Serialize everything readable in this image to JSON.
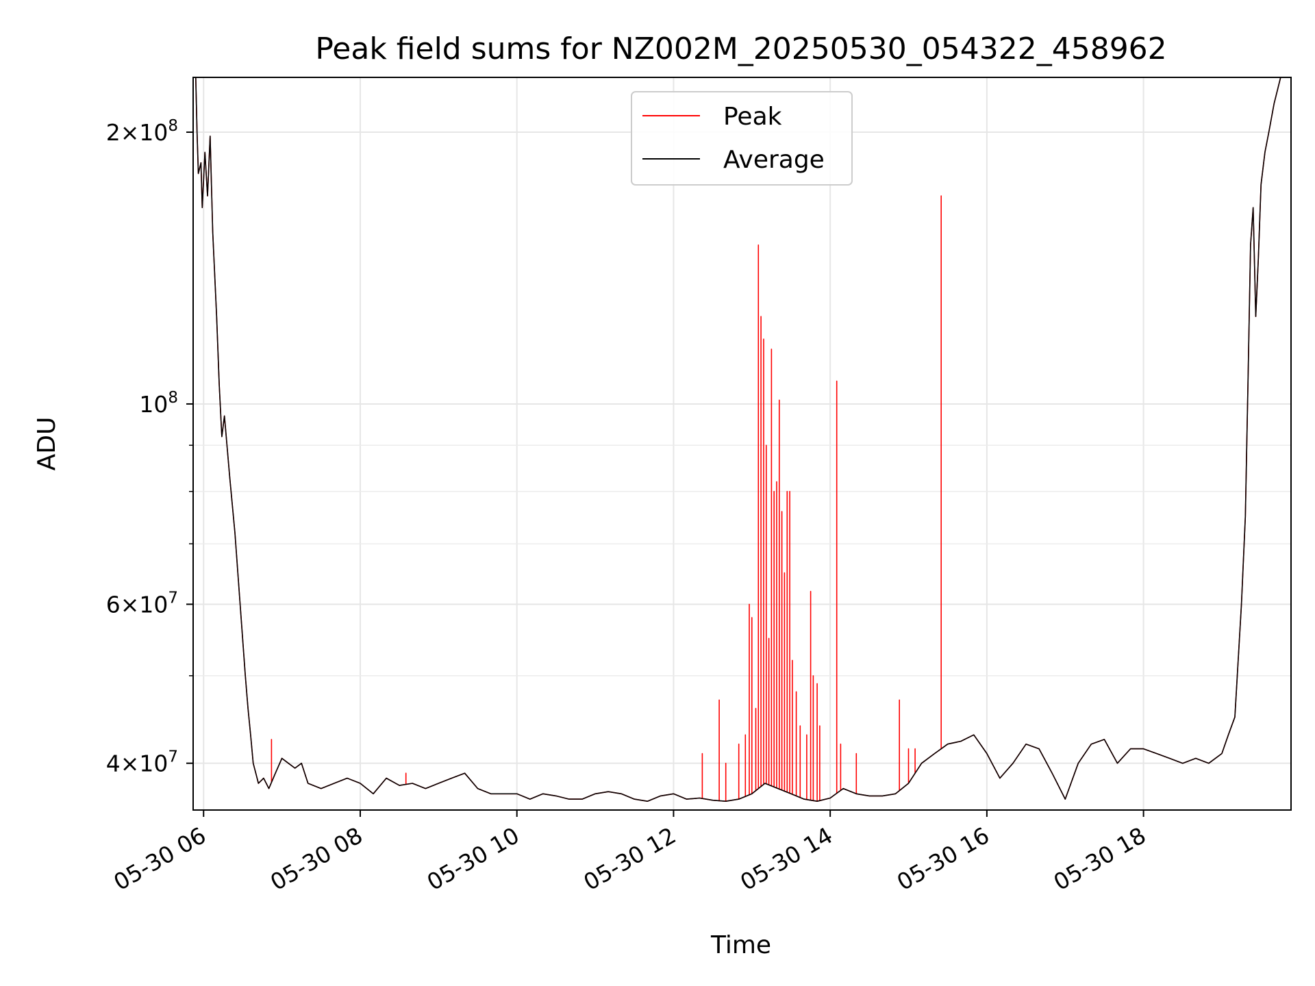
{
  "chart_data": {
    "type": "line",
    "title": "Peak field sums for NZ002M_20250530_054322_458962",
    "xlabel": "Time",
    "ylabel": "ADU",
    "xlim": [
      "2025-05-30T05:52",
      "2025-05-30T19:53"
    ],
    "ylim": [
      35500000,
      230000000
    ],
    "yscale": "log",
    "grid": true,
    "legend_placement": "upper center",
    "x_ticks": [
      {
        "t": "2025-05-30T06:00",
        "label": "05-30 06"
      },
      {
        "t": "2025-05-30T08:00",
        "label": "05-30 08"
      },
      {
        "t": "2025-05-30T10:00",
        "label": "05-30 10"
      },
      {
        "t": "2025-05-30T12:00",
        "label": "05-30 12"
      },
      {
        "t": "2025-05-30T14:00",
        "label": "05-30 14"
      },
      {
        "t": "2025-05-30T16:00",
        "label": "05-30 16"
      },
      {
        "t": "2025-05-30T18:00",
        "label": "05-30 18"
      }
    ],
    "y_major_ticks": [
      {
        "v": 40000000,
        "label_mant": "4",
        "label_exp": "7"
      },
      {
        "v": 60000000,
        "label_mant": "6",
        "label_exp": "7"
      },
      {
        "v": 100000000,
        "label_mant": "",
        "label_exp": "8"
      },
      {
        "v": 200000000,
        "label_mant": "2",
        "label_exp": "8"
      }
    ],
    "y_minor_ticks": [
      50000000,
      70000000,
      80000000,
      90000000
    ],
    "series": [
      {
        "name": "Peak",
        "color": "#ff0000",
        "baseline": "Average",
        "spikes": [
          {
            "t": "2025-05-30T06:52",
            "v": 42500000
          },
          {
            "t": "2025-05-30T08:35",
            "v": 39000000
          },
          {
            "t": "2025-05-30T12:22",
            "v": 41000000
          },
          {
            "t": "2025-05-30T12:35",
            "v": 47000000
          },
          {
            "t": "2025-05-30T12:40",
            "v": 40000000
          },
          {
            "t": "2025-05-30T12:50",
            "v": 42000000
          },
          {
            "t": "2025-05-30T12:55",
            "v": 43000000
          },
          {
            "t": "2025-05-30T12:58",
            "v": 60000000
          },
          {
            "t": "2025-05-30T13:00",
            "v": 58000000
          },
          {
            "t": "2025-05-30T13:03",
            "v": 46000000
          },
          {
            "t": "2025-05-30T13:05",
            "v": 150000000
          },
          {
            "t": "2025-05-30T13:07",
            "v": 125000000
          },
          {
            "t": "2025-05-30T13:09",
            "v": 118000000
          },
          {
            "t": "2025-05-30T13:11",
            "v": 90000000
          },
          {
            "t": "2025-05-30T13:13",
            "v": 55000000
          },
          {
            "t": "2025-05-30T13:15",
            "v": 115000000
          },
          {
            "t": "2025-05-30T13:17",
            "v": 80000000
          },
          {
            "t": "2025-05-30T13:19",
            "v": 82000000
          },
          {
            "t": "2025-05-30T13:21",
            "v": 101000000
          },
          {
            "t": "2025-05-30T13:23",
            "v": 76000000
          },
          {
            "t": "2025-05-30T13:25",
            "v": 65000000
          },
          {
            "t": "2025-05-30T13:27",
            "v": 80000000
          },
          {
            "t": "2025-05-30T13:29",
            "v": 80000000
          },
          {
            "t": "2025-05-30T13:31",
            "v": 52000000
          },
          {
            "t": "2025-05-30T13:34",
            "v": 48000000
          },
          {
            "t": "2025-05-30T13:37",
            "v": 44000000
          },
          {
            "t": "2025-05-30T13:42",
            "v": 43000000
          },
          {
            "t": "2025-05-30T13:45",
            "v": 62000000
          },
          {
            "t": "2025-05-30T13:47",
            "v": 50000000
          },
          {
            "t": "2025-05-30T13:50",
            "v": 49000000
          },
          {
            "t": "2025-05-30T13:52",
            "v": 44000000
          },
          {
            "t": "2025-05-30T14:05",
            "v": 106000000
          },
          {
            "t": "2025-05-30T14:08",
            "v": 42000000
          },
          {
            "t": "2025-05-30T14:20",
            "v": 41000000
          },
          {
            "t": "2025-05-30T14:53",
            "v": 47000000
          },
          {
            "t": "2025-05-30T15:00",
            "v": 41500000
          },
          {
            "t": "2025-05-30T15:05",
            "v": 41500000
          },
          {
            "t": "2025-05-30T15:25",
            "v": 170000000
          }
        ]
      },
      {
        "name": "Average",
        "color": "#000000",
        "x": [
          "2025-05-30T05:52",
          "2025-05-30T05:54",
          "2025-05-30T05:55",
          "2025-05-30T05:56",
          "2025-05-30T05:58",
          "2025-05-30T05:59",
          "2025-05-30T06:01",
          "2025-05-30T06:03",
          "2025-05-30T06:05",
          "2025-05-30T06:07",
          "2025-05-30T06:10",
          "2025-05-30T06:12",
          "2025-05-30T06:14",
          "2025-05-30T06:16",
          "2025-05-30T06:20",
          "2025-05-30T06:24",
          "2025-05-30T06:28",
          "2025-05-30T06:32",
          "2025-05-30T06:34",
          "2025-05-30T06:36",
          "2025-05-30T06:38",
          "2025-05-30T06:40",
          "2025-05-30T06:42",
          "2025-05-30T06:46",
          "2025-05-30T06:50",
          "2025-05-30T06:55",
          "2025-05-30T07:00",
          "2025-05-30T07:05",
          "2025-05-30T07:10",
          "2025-05-30T07:15",
          "2025-05-30T07:20",
          "2025-05-30T07:30",
          "2025-05-30T07:40",
          "2025-05-30T07:50",
          "2025-05-30T08:00",
          "2025-05-30T08:10",
          "2025-05-30T08:20",
          "2025-05-30T08:30",
          "2025-05-30T08:40",
          "2025-05-30T08:50",
          "2025-05-30T09:00",
          "2025-05-30T09:10",
          "2025-05-30T09:20",
          "2025-05-30T09:30",
          "2025-05-30T09:40",
          "2025-05-30T09:50",
          "2025-05-30T10:00",
          "2025-05-30T10:10",
          "2025-05-30T10:20",
          "2025-05-30T10:30",
          "2025-05-30T10:40",
          "2025-05-30T10:50",
          "2025-05-30T11:00",
          "2025-05-30T11:10",
          "2025-05-30T11:20",
          "2025-05-30T11:30",
          "2025-05-30T11:40",
          "2025-05-30T11:50",
          "2025-05-30T12:00",
          "2025-05-30T12:10",
          "2025-05-30T12:20",
          "2025-05-30T12:30",
          "2025-05-30T12:40",
          "2025-05-30T12:50",
          "2025-05-30T13:00",
          "2025-05-30T13:10",
          "2025-05-30T13:20",
          "2025-05-30T13:30",
          "2025-05-30T13:40",
          "2025-05-30T13:50",
          "2025-05-30T14:00",
          "2025-05-30T14:10",
          "2025-05-30T14:20",
          "2025-05-30T14:30",
          "2025-05-30T14:40",
          "2025-05-30T14:50",
          "2025-05-30T15:00",
          "2025-05-30T15:10",
          "2025-05-30T15:20",
          "2025-05-30T15:30",
          "2025-05-30T15:40",
          "2025-05-30T15:50",
          "2025-05-30T16:00",
          "2025-05-30T16:10",
          "2025-05-30T16:20",
          "2025-05-30T16:30",
          "2025-05-30T16:40",
          "2025-05-30T16:50",
          "2025-05-30T17:00",
          "2025-05-30T17:10",
          "2025-05-30T17:20",
          "2025-05-30T17:30",
          "2025-05-30T17:40",
          "2025-05-30T17:50",
          "2025-05-30T18:00",
          "2025-05-30T18:10",
          "2025-05-30T18:20",
          "2025-05-30T18:30",
          "2025-05-30T18:40",
          "2025-05-30T18:50",
          "2025-05-30T19:00",
          "2025-05-30T19:05",
          "2025-05-30T19:10",
          "2025-05-30T19:15",
          "2025-05-30T19:18",
          "2025-05-30T19:20",
          "2025-05-30T19:22",
          "2025-05-30T19:24",
          "2025-05-30T19:26",
          "2025-05-30T19:28",
          "2025-05-30T19:30",
          "2025-05-30T19:33",
          "2025-05-30T19:36",
          "2025-05-30T19:40",
          "2025-05-30T19:45",
          "2025-05-30T19:53"
        ],
        "values": [
          230000000,
          230000000,
          200000000,
          180000000,
          185000000,
          165000000,
          190000000,
          170000000,
          198000000,
          155000000,
          125000000,
          105000000,
          92000000,
          97000000,
          83000000,
          72000000,
          60000000,
          50000000,
          46000000,
          43000000,
          40000000,
          39000000,
          38000000,
          38500000,
          37500000,
          39000000,
          40500000,
          40000000,
          39500000,
          40000000,
          38000000,
          37500000,
          38000000,
          38500000,
          38000000,
          37000000,
          38500000,
          37800000,
          38000000,
          37500000,
          38000000,
          38500000,
          39000000,
          37500000,
          37000000,
          37000000,
          37000000,
          36500000,
          37000000,
          36800000,
          36500000,
          36500000,
          37000000,
          37200000,
          37000000,
          36500000,
          36300000,
          36800000,
          37000000,
          36500000,
          36600000,
          36400000,
          36300000,
          36500000,
          37000000,
          38000000,
          37500000,
          37000000,
          36500000,
          36300000,
          36600000,
          37500000,
          37000000,
          36800000,
          36800000,
          37000000,
          38000000,
          40000000,
          41000000,
          42000000,
          42300000,
          43000000,
          41000000,
          38500000,
          40000000,
          42000000,
          41500000,
          39000000,
          36500000,
          40000000,
          42000000,
          42500000,
          40000000,
          41500000,
          41500000,
          41000000,
          40500000,
          40000000,
          40500000,
          40000000,
          41000000,
          43000000,
          45000000,
          60000000,
          75000000,
          105000000,
          150000000,
          165000000,
          125000000,
          145000000,
          175000000,
          190000000,
          200000000,
          215000000,
          230000000,
          230000000
        ]
      }
    ]
  }
}
